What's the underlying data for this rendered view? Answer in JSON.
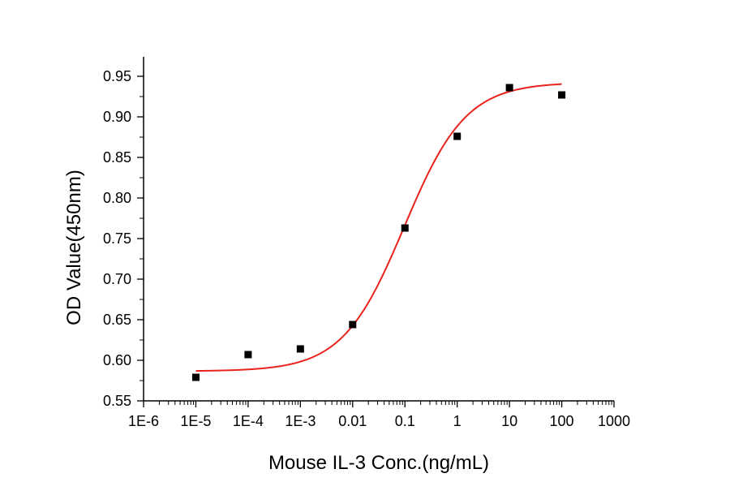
{
  "chart_data": {
    "type": "scatter",
    "xlabel": "Mouse IL-3 Conc.(ng/mL)",
    "ylabel": "OD Value(450nm)",
    "xscale": "log",
    "xlim": [
      1e-06,
      1000
    ],
    "ylim": [
      0.55,
      0.95
    ],
    "x_tick_labels": [
      "1E-6",
      "1E-5",
      "1E-4",
      "1E-3",
      "0.01",
      "0.1",
      "1",
      "10",
      "100",
      "1000"
    ],
    "y_tick_labels": [
      "0.55",
      "0.60",
      "0.65",
      "0.70",
      "0.75",
      "0.80",
      "0.85",
      "0.90",
      "0.95"
    ],
    "grid": false,
    "legend": "none",
    "series": [
      {
        "type": "scatter",
        "marker": "square",
        "color": "#000000",
        "x": [
          1e-05,
          0.0001,
          0.001,
          0.01,
          0.1,
          1,
          10,
          100
        ],
        "y": [
          0.579,
          0.607,
          0.614,
          0.644,
          0.763,
          0.876,
          0.936,
          0.927
        ]
      },
      {
        "type": "line",
        "color": "#e8231c",
        "fit": "four-parameter logistic",
        "bottom": 0.5865,
        "top": 0.9425,
        "ec50": 0.097,
        "hill": 0.737,
        "x_range": [
          1e-05,
          100
        ]
      }
    ]
  }
}
